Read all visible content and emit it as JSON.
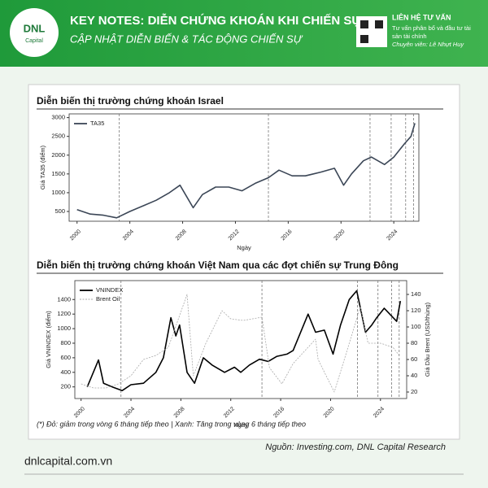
{
  "header": {
    "logo": "DNL",
    "logo_sub": "Capital",
    "title": "KEY NOTES: DIỄN CHỨNG KHOÁN KHI CHIẾN SỰ",
    "subtitle": "CẬP NHẬT DIỄN BIẾN & TÁC ĐỘNG CHIẾN SỰ",
    "contact_title": "LIÊN HỆ TƯ VẤN",
    "contact_line1": "Tư vấn phân bổ và đầu tư tài",
    "contact_line2": "sản tài chính",
    "contact_person": "Chuyên viên: Lê Nhựt Huy"
  },
  "chart_data": [
    {
      "type": "line",
      "title": "Diễn biến thị trường chứng khoán Israel",
      "x_label": "Ngày",
      "y_label": "Giá TA35 (điểm)",
      "legend": "upper left",
      "xlim": [
        1999.4,
        2025.9
      ],
      "xticks": [
        2000,
        2004,
        2008,
        2012,
        2016,
        2020,
        2024
      ],
      "ylim": [
        240,
        3100
      ],
      "yticks": [
        500,
        1000,
        1500,
        2000,
        2500,
        3000
      ],
      "events": [
        2003.2,
        2014.5,
        2022.2,
        2023.8,
        2024.9,
        2025.5
      ],
      "series": [
        {
          "name": "TA35",
          "color": "#3b4656",
          "x": [
            2000,
            2001,
            2002,
            2003,
            2004,
            2005,
            2006,
            2007,
            2007.8,
            2008.8,
            2009.5,
            2010.5,
            2011.5,
            2012.5,
            2013.5,
            2014.5,
            2015.3,
            2016.3,
            2017.3,
            2018.5,
            2019.5,
            2020.2,
            2020.8,
            2021.7,
            2022.3,
            2023.3,
            2024,
            2024.8,
            2025.3,
            2025.6
          ],
          "values": [
            550,
            430,
            400,
            330,
            500,
            650,
            800,
            1000,
            1200,
            600,
            950,
            1150,
            1150,
            1050,
            1250,
            1400,
            1600,
            1450,
            1450,
            1550,
            1650,
            1200,
            1500,
            1850,
            1950,
            1750,
            1950,
            2300,
            2500,
            2850
          ]
        }
      ]
    },
    {
      "type": "line",
      "title": "Diễn biến thị trường chứng khoán Việt Nam qua các đợt chiến sự Trung Đông",
      "x_label": "Ngày",
      "y_label": "Giá VNINDEX (điểm)",
      "y2_label": "Giá Dầu Brent (USD/thùng)",
      "legend": "upper left",
      "xlim": [
        1999.5,
        2026.1
      ],
      "xticks": [
        2000,
        2004,
        2008,
        2012,
        2016,
        2020,
        2024
      ],
      "ylim": [
        40,
        1660
      ],
      "yticks": [
        200,
        400,
        600,
        800,
        1000,
        1200,
        1400
      ],
      "y2lim": [
        12,
        157
      ],
      "y2ticks": [
        20,
        40,
        60,
        80,
        100,
        120,
        140
      ],
      "events": [
        2003.2,
        2014.5,
        2022.15,
        2023.8,
        2024.9,
        2025.5
      ],
      "series": [
        {
          "name": "VNINDEX",
          "color": "#000000",
          "x": [
            2000.5,
            2001.4,
            2001.8,
            2002.5,
            2003.3,
            2004,
            2005,
            2006,
            2006.6,
            2007.2,
            2007.6,
            2007.9,
            2008.5,
            2009.1,
            2009.8,
            2010.5,
            2011.5,
            2012.3,
            2012.8,
            2013.5,
            2014.3,
            2015,
            2015.7,
            2016.5,
            2017,
            2018.2,
            2018.8,
            2019.5,
            2020.2,
            2020.8,
            2021.5,
            2022.1,
            2022.8,
            2023.3,
            2023.7,
            2024.3,
            2025.3,
            2025.6
          ],
          "values": [
            200,
            570,
            250,
            200,
            150,
            230,
            250,
            400,
            600,
            1150,
            900,
            1050,
            400,
            250,
            600,
            500,
            400,
            470,
            400,
            500,
            580,
            550,
            620,
            650,
            700,
            1200,
            950,
            980,
            650,
            1050,
            1400,
            1520,
            950,
            1050,
            1150,
            1280,
            1100,
            1380
          ]
        },
        {
          "name": "Brent Oil",
          "color": "#aaaaaa",
          "dashed": true,
          "axis": "y2",
          "x": [
            2000,
            2001,
            2002,
            2003,
            2004,
            2005,
            2006,
            2007,
            2008.5,
            2009,
            2010,
            2011.3,
            2012,
            2013,
            2014.5,
            2015.1,
            2016.1,
            2017,
            2018.8,
            2019,
            2020.3,
            2021,
            2022.4,
            2023,
            2024,
            2025,
            2025.5
          ],
          "values": [
            30,
            25,
            25,
            30,
            40,
            60,
            65,
            75,
            140,
            40,
            80,
            120,
            110,
            108,
            112,
            50,
            30,
            55,
            85,
            60,
            20,
            55,
            125,
            80,
            80,
            75,
            65
          ]
        }
      ]
    }
  ],
  "note": "(*) Đỏ: giảm trong vòng 6 tháng tiếp theo | Xanh: Tăng trong vòng 6 tháng tiếp theo",
  "source": "Nguồn: Investing.com, DNL Capital Research",
  "website": "dnlcapital.com.vn"
}
